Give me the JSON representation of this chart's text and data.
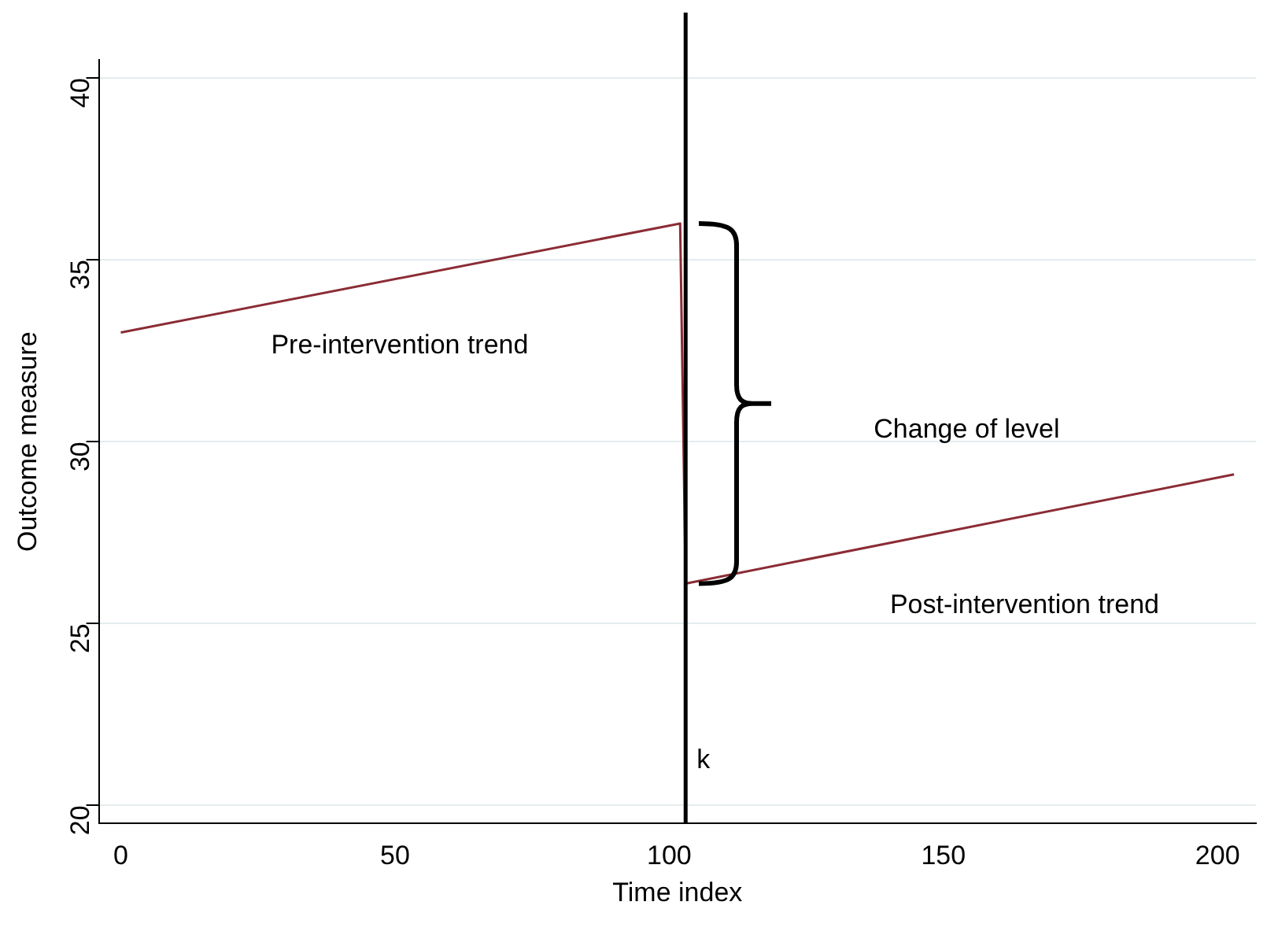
{
  "chart_data": {
    "type": "line",
    "xlabel": "Time index",
    "ylabel": "Outcome measure",
    "series": [
      {
        "color": "#8b2c35",
        "x": [
          0,
          102,
          103,
          203
        ],
        "values": [
          33,
          36,
          26.1,
          29.1
        ]
      }
    ],
    "xlim": [
      -4,
      207
    ],
    "xticks": [
      0,
      50,
      100,
      150,
      200
    ],
    "ylim": [
      19.5,
      40.5
    ],
    "yticks": [
      20,
      25,
      30,
      35,
      40
    ],
    "grid": "y",
    "legend": false,
    "marker": "none",
    "line_style": "solid",
    "ref_lines": [
      {
        "axis": "x",
        "value": 103,
        "label": "k",
        "color": "#000000"
      }
    ],
    "annotations": [
      "Pre-intervention trend",
      "Change of level",
      "Post-intervention trend"
    ]
  }
}
